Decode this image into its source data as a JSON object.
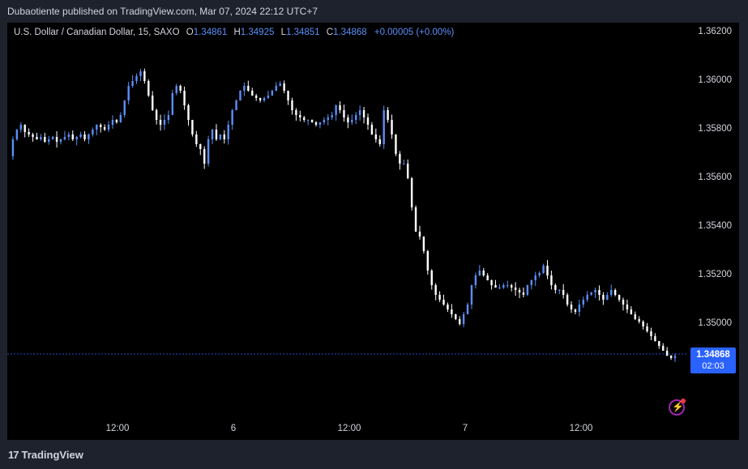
{
  "header": {
    "published": "Dubaotiente published on TradingView.com, Mar 07, 2024 22:12 UTC+7"
  },
  "legend": {
    "symbol": "U.S. Dollar / Canadian Dollar, 15, SAXO",
    "o_label": "O",
    "o_value": "1.34861",
    "h_label": "H",
    "h_value": "1.34925",
    "l_label": "L",
    "l_value": "1.34851",
    "c_label": "C",
    "c_value": "1.34868",
    "change": "+0.00005 (+0.00%)"
  },
  "current": {
    "price": "1.34868",
    "countdown": "02:03"
  },
  "footer": {
    "brand": "TradingView",
    "logo_mark": "17"
  },
  "colors": {
    "up": "#5b8ff9",
    "down": "#ffffff",
    "background": "#000000",
    "price_line": "#2962ff"
  },
  "chart_data": {
    "type": "candlestick",
    "price_ticks": [
      "1.36200",
      "1.36000",
      "1.35800",
      "1.35600",
      "1.35400",
      "1.35200",
      "1.35000"
    ],
    "time_ticks": [
      "12:00",
      "6",
      "12:00",
      "7",
      "12:00"
    ],
    "ylim": [
      1.3466,
      1.3626
    ],
    "last_price": 1.34868,
    "close_path": [
      1.3569,
      1.3576,
      1.358,
      1.3582,
      1.3579,
      1.3578,
      1.3577,
      1.3576,
      1.3577,
      1.3575,
      1.3576,
      1.3577,
      1.3575,
      1.3576,
      1.3577,
      1.3578,
      1.3576,
      1.3577,
      1.3578,
      1.3576,
      1.3578,
      1.358,
      1.3582,
      1.3581,
      1.358,
      1.3582,
      1.3584,
      1.3583,
      1.3586,
      1.3592,
      1.3598,
      1.36,
      1.3602,
      1.3604,
      1.36,
      1.3594,
      1.3588,
      1.3584,
      1.3582,
      1.3584,
      1.3586,
      1.3595,
      1.3598,
      1.3596,
      1.359,
      1.3584,
      1.3578,
      1.3574,
      1.3572,
      1.3566,
      1.3576,
      1.358,
      1.3576,
      1.3578,
      1.3576,
      1.3582,
      1.3588,
      1.3592,
      1.3596,
      1.3598,
      1.3596,
      1.3594,
      1.3593,
      1.3592,
      1.3593,
      1.3594,
      1.3596,
      1.3598,
      1.3599,
      1.3596,
      1.3592,
      1.3588,
      1.3586,
      1.3585,
      1.3584,
      1.3584,
      1.3583,
      1.3582,
      1.3583,
      1.3584,
      1.3585,
      1.3586,
      1.359,
      1.3588,
      1.3585,
      1.3583,
      1.3584,
      1.3586,
      1.3588,
      1.3585,
      1.3582,
      1.3578,
      1.3576,
      1.3574,
      1.3588,
      1.3584,
      1.3578,
      1.357,
      1.3566,
      1.3566,
      1.356,
      1.3548,
      1.3538,
      1.3536,
      1.353,
      1.3522,
      1.3516,
      1.3512,
      1.351,
      1.3508,
      1.3506,
      1.3504,
      1.3502,
      1.35,
      1.3504,
      1.3508,
      1.3516,
      1.352,
      1.3522,
      1.352,
      1.3518,
      1.3516,
      1.3515,
      1.3515,
      1.3516,
      1.3516,
      1.3515,
      1.3514,
      1.3513,
      1.3512,
      1.3516,
      1.3518,
      1.352,
      1.3521,
      1.3524,
      1.352,
      1.3516,
      1.3514,
      1.3514,
      1.3512,
      1.3508,
      1.3506,
      1.3505,
      1.3508,
      1.351,
      1.3512,
      1.3513,
      1.3514,
      1.3512,
      1.351,
      1.3512,
      1.3514,
      1.3512,
      1.351,
      1.3508,
      1.3506,
      1.3504,
      1.3502,
      1.3501,
      1.3499,
      1.3497,
      1.3495,
      1.3493,
      1.3491,
      1.3489,
      1.3487,
      1.3486,
      1.34868
    ]
  }
}
